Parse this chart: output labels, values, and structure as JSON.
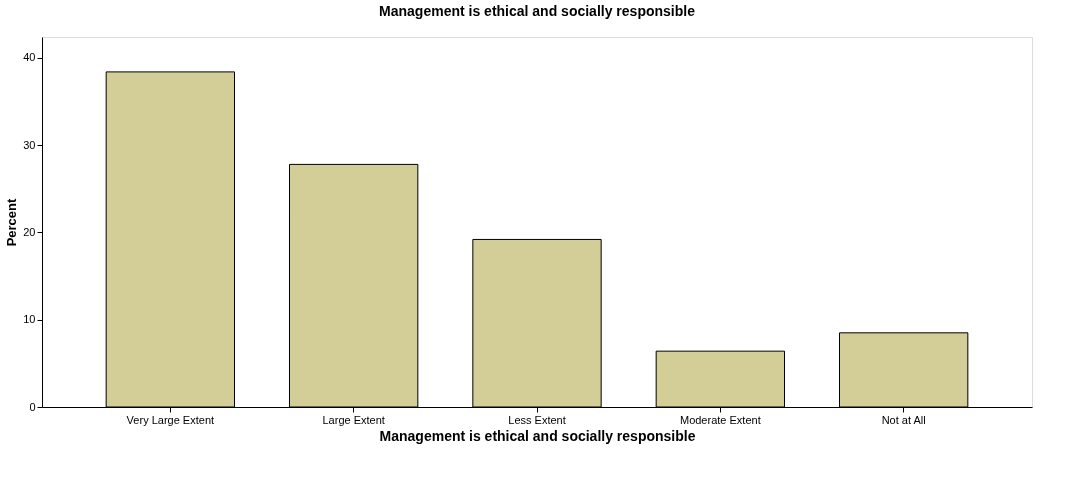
{
  "chart_data": {
    "type": "bar",
    "title": "Management is ethical and socially responsible",
    "xlabel": "Management is ethical and socially responsible",
    "ylabel": "Percent",
    "categories": [
      "Very Large Extent",
      "Large Extent",
      "Less Extent",
      "Moderate Extent",
      "Not at All"
    ],
    "values": [
      38.4,
      27.8,
      19.2,
      6.4,
      8.5
    ],
    "color": "#d3ce97",
    "ylim": [
      0,
      42.4
    ],
    "yticks": [
      0,
      10,
      20,
      30,
      40
    ],
    "grid": false
  }
}
